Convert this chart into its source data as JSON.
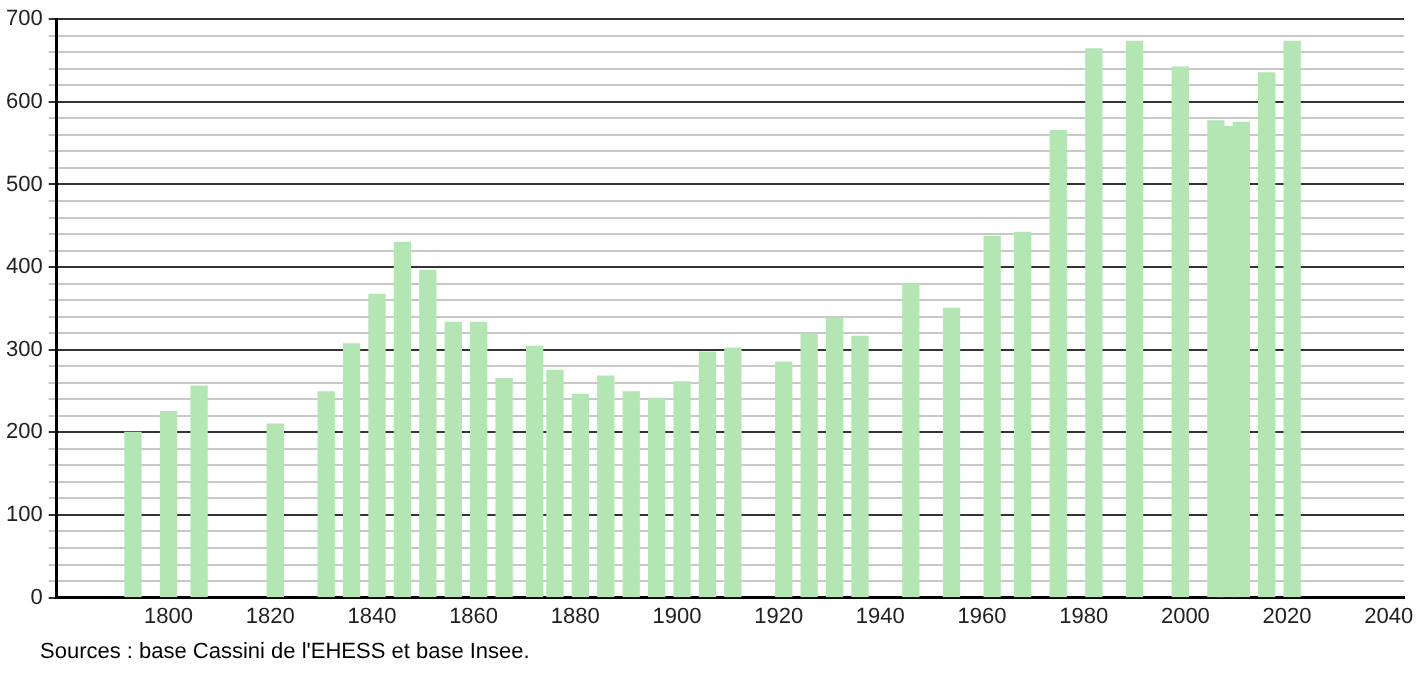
{
  "chart_data": {
    "type": "bar",
    "x": [
      1793,
      1800,
      1806,
      1821,
      1831,
      1836,
      1841,
      1846,
      1851,
      1856,
      1861,
      1866,
      1872,
      1876,
      1881,
      1886,
      1891,
      1896,
      1901,
      1906,
      1911,
      1921,
      1926,
      1931,
      1936,
      1946,
      1954,
      1962,
      1968,
      1975,
      1982,
      1990,
      1999,
      2006,
      2008,
      2011,
      2016,
      2021
    ],
    "values": [
      200,
      225,
      256,
      210,
      249,
      307,
      367,
      430,
      396,
      333,
      333,
      265,
      304,
      275,
      246,
      268,
      249,
      241,
      261,
      297,
      302,
      285,
      319,
      338,
      316,
      379,
      350,
      437,
      442,
      565,
      664,
      673,
      642,
      577,
      570,
      575,
      635,
      673
    ],
    "color": "#b3e6b3",
    "xlim": [
      1778,
      2043
    ],
    "xticks": [
      1800,
      1820,
      1840,
      1860,
      1880,
      1900,
      1920,
      1940,
      1960,
      1980,
      2000,
      2020,
      2040
    ],
    "ylim": [
      0,
      700
    ],
    "yticks": [
      0,
      {
        "value": 20,
        "label": null
      },
      {
        "value": 40,
        "label": null
      },
      {
        "value": 60,
        "label": null
      },
      {
        "value": 80,
        "label": null
      },
      100,
      {
        "value": 120,
        "label": null
      },
      {
        "value": 140,
        "label": null
      },
      {
        "value": 160,
        "label": null
      },
      {
        "value": 180,
        "label": null
      },
      200,
      {
        "value": 220,
        "label": null
      },
      {
        "value": 240,
        "label": null
      },
      {
        "value": 260,
        "label": null
      },
      {
        "value": 280,
        "label": null
      },
      300,
      {
        "value": 320,
        "label": null
      },
      {
        "value": 340,
        "label": null
      },
      {
        "value": 360,
        "label": null
      },
      {
        "value": 380,
        "label": null
      },
      400,
      {
        "value": 420,
        "label": null
      },
      {
        "value": 440,
        "label": null
      },
      {
        "value": 460,
        "label": null
      },
      {
        "value": 480,
        "label": null
      },
      500,
      {
        "value": 520,
        "label": null
      },
      {
        "value": 540,
        "label": null
      },
      {
        "value": 560,
        "label": null
      },
      {
        "value": 580,
        "label": null
      },
      600,
      {
        "value": 620,
        "label": null
      },
      {
        "value": 640,
        "label": null
      },
      {
        "value": 660,
        "label": null
      },
      {
        "value": 680,
        "label": null
      },
      700
    ],
    "grid": "y",
    "legend": false,
    "annotations": [
      "Sources : base Cassini de l'EHESS et base Insee."
    ]
  }
}
